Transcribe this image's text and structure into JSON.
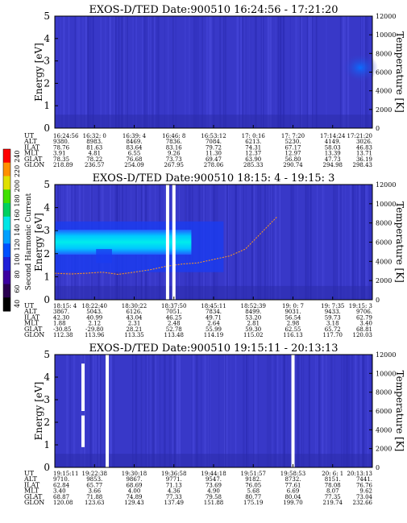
{
  "colorbar": {
    "label": "Second Harmonic Current",
    "ticks": [
      "40",
      "60",
      "80",
      "100",
      "120",
      "140",
      "160",
      "180",
      "200",
      "220",
      "240"
    ],
    "colors": [
      "#000000",
      "#2a0050",
      "#3c00a0",
      "#2020d8",
      "#0050ff",
      "#00a0ff",
      "#00e6e6",
      "#00d060",
      "#40e000",
      "#e0e000",
      "#ff9000",
      "#ff0000"
    ]
  },
  "chart_data": [
    {
      "type": "heatmap",
      "title": "EXOS-D/TED  Date:900510  16:24:56 - 17:21:20",
      "ylabel": "Energy [eV]",
      "y2label": "Temperature [K]",
      "ylim": [
        0,
        5
      ],
      "yticks": [
        "0",
        "1",
        "2",
        "3",
        "4",
        "5"
      ],
      "y2lim": [
        0,
        12000
      ],
      "y2ticks": [
        "0",
        "2000",
        "4000",
        "6000",
        "8000",
        "10000",
        "12000"
      ],
      "row_labels": [
        "UT",
        "ALT",
        "ILAT",
        "MLT",
        "GLAT",
        "GLON"
      ],
      "columns": [
        [
          "16:24:56",
          "9380.",
          "78.76",
          "3.91",
          "78.35",
          "218.89"
        ],
        [
          "16:32: 0",
          "8983.",
          "81.63",
          "4.81",
          "78.22",
          "236.57"
        ],
        [
          "16:39: 4",
          "8469.",
          "83.64",
          "6.55",
          "76.68",
          "254.09"
        ],
        [
          "16:46: 8",
          "7836.",
          "83.16",
          "9.26",
          "73.73",
          "267.95"
        ],
        [
          "16:53:12",
          "7084.",
          "79.72",
          "11.30",
          "69.47",
          "278.06"
        ],
        [
          "17: 0:16",
          "6213.",
          "74.31",
          "12.37",
          "63.90",
          "285.33"
        ],
        [
          "17: 7:20",
          "5230.",
          "67.17",
          "12.97",
          "56.80",
          "290.74"
        ],
        [
          "17:14:24",
          "4149.",
          "58.03",
          "13.39",
          "47.73",
          "294.98"
        ],
        [
          "17:21:20",
          "3026.",
          "46.83",
          "13.71",
          "36.19",
          "298.43"
        ]
      ],
      "gaps": [],
      "band": null,
      "trace": null
    },
    {
      "type": "heatmap",
      "title": "EXOS-D/TED   Date:900510   18:15: 4 - 19:15: 3",
      "ylabel": "Energy [eV]",
      "y2label": "Temperature [K]",
      "ylim": [
        0,
        5
      ],
      "yticks": [
        "0",
        "1",
        "2",
        "3",
        "4",
        "5"
      ],
      "y2lim": [
        0,
        12000
      ],
      "y2ticks": [
        "0",
        "2000",
        "4000",
        "6000",
        "8000",
        "10000",
        "12000"
      ],
      "row_labels": [
        "UT",
        "ALT",
        "ILAT",
        "MLT",
        "GLAT",
        "GLON"
      ],
      "columns": [
        [
          "18:15: 4",
          "3867.",
          "42.30",
          "1.88",
          "-30.85",
          "112.38"
        ],
        [
          "18:22:40",
          "5043.",
          "40.99",
          "2.12",
          "-29.80",
          "113.96"
        ],
        [
          "18:30:22",
          "6126.",
          "43.04",
          "2.31",
          "28.21",
          "113.35"
        ],
        [
          "18:37:50",
          "7051.",
          "46.25",
          "2.48",
          "52.78",
          "113.48"
        ],
        [
          "18:45:11",
          "7834.",
          "49.71",
          "2.64",
          "55.99",
          "114.19"
        ],
        [
          "18:52:39",
          "8499.",
          "53.20",
          "2.81",
          "59.30",
          "115.02"
        ],
        [
          "19: 0: 7",
          "9031.",
          "56.54",
          "2.98",
          "62.55",
          "116.13"
        ],
        [
          "19: 7:35",
          "9433.",
          "59.73",
          "3.18",
          "65.72",
          "117.70"
        ],
        [
          "19:15: 3",
          "9706.",
          "62.79",
          "3.40",
          "68.81",
          "120.03"
        ]
      ],
      "gaps": [
        0.35,
        0.37
      ],
      "band": {
        "center_ev": 2.5,
        "half_width_ev": 0.3,
        "end_fraction": 0.43
      },
      "trace": [
        {
          "x": 0.0,
          "y": 1.15
        },
        {
          "x": 0.05,
          "y": 1.12
        },
        {
          "x": 0.1,
          "y": 1.15
        },
        {
          "x": 0.15,
          "y": 1.2
        },
        {
          "x": 0.2,
          "y": 1.1
        },
        {
          "x": 0.25,
          "y": 1.2
        },
        {
          "x": 0.3,
          "y": 1.3
        },
        {
          "x": 0.35,
          "y": 1.45
        },
        {
          "x": 0.4,
          "y": 1.55
        },
        {
          "x": 0.45,
          "y": 1.6
        },
        {
          "x": 0.5,
          "y": 1.75
        },
        {
          "x": 0.55,
          "y": 1.9
        },
        {
          "x": 0.6,
          "y": 2.2
        },
        {
          "x": 0.65,
          "y": 2.9
        },
        {
          "x": 0.7,
          "y": 3.6
        }
      ]
    },
    {
      "type": "heatmap",
      "title": "EXOS-D/TED   Date:900510   19:15:11 - 20:13:13",
      "ylabel": "Energy [eV]",
      "y2label": "Temperature [K]",
      "ylim": [
        0,
        5
      ],
      "yticks": [
        "0",
        "1",
        "2",
        "3",
        "4",
        "5"
      ],
      "y2lim": [
        0,
        12000
      ],
      "y2ticks": [
        "0",
        "2000",
        "4000",
        "6000",
        "8000",
        "10000",
        "12000"
      ],
      "row_labels": [
        "UT",
        "ALT",
        "ILAT",
        "MLT",
        "GLAT",
        "GLON"
      ],
      "columns": [
        [
          "19:15:11",
          "9710.",
          "62.84",
          "3.40",
          "68.87",
          "120.08"
        ],
        [
          "19:22:38",
          "9853.",
          "65.77",
          "3.66",
          "71.88",
          "123.63"
        ],
        [
          "19:30:18",
          "9867.",
          "68.69",
          "4.00",
          "74.89",
          "129.43"
        ],
        [
          "19:36:58",
          "9771.",
          "71.13",
          "4.36",
          "77.33",
          "137.49"
        ],
        [
          "19:44:18",
          "9547.",
          "73.69",
          "4.90",
          "79.58",
          "151.88"
        ],
        [
          "19:51:57",
          "9182.",
          "76.05",
          "5.68",
          "80.77",
          "175.19"
        ],
        [
          "19:58:53",
          "8732.",
          "77.61",
          "6.69",
          "80.04",
          "199.70"
        ],
        [
          "20: 6: 1",
          "8151.",
          "78.08",
          "8.07",
          "77.35",
          "219.74"
        ],
        [
          "20:13:13",
          "7441.",
          "76.76",
          "9.62",
          "73.04",
          "232.66"
        ]
      ],
      "gaps": [
        0.16,
        0.745
      ],
      "band": null,
      "trace": null
    }
  ]
}
